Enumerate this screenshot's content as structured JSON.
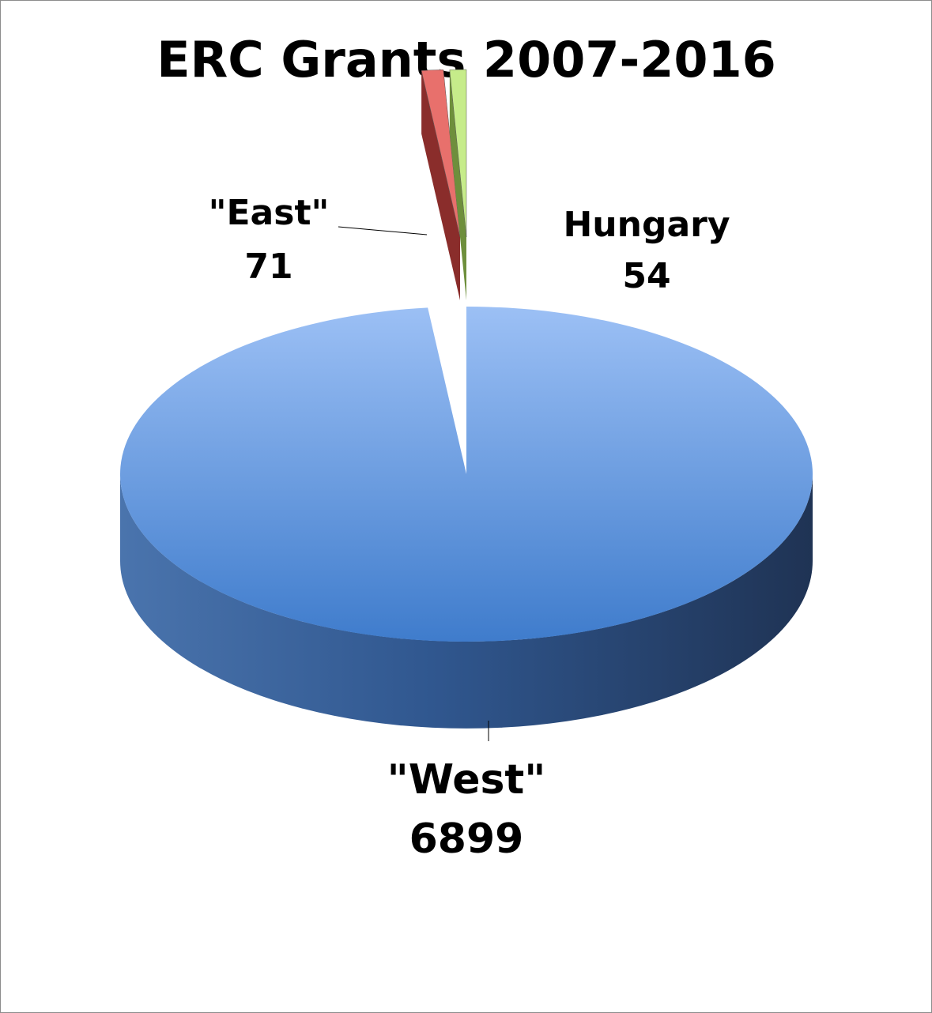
{
  "chart_data": {
    "type": "pie3d",
    "title": "ERC Grants 2007-2016",
    "categories": [
      "\"West\"",
      "\"East\"",
      "Hungary"
    ],
    "values": [
      6899,
      71,
      54
    ],
    "colors": [
      "#5b8fd6",
      "#e8706c",
      "#c6ec8a"
    ]
  }
}
